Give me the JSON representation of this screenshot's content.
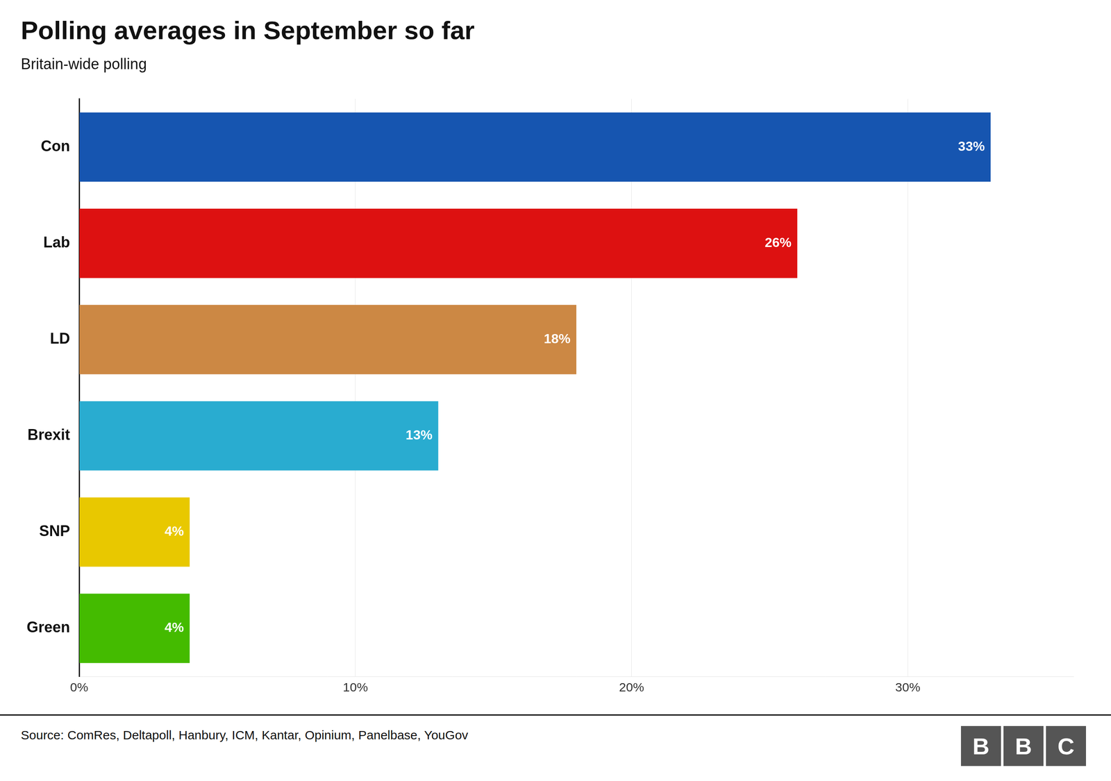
{
  "chart_data": {
    "type": "bar",
    "orientation": "horizontal",
    "title": "Polling averages in September so far",
    "subtitle": "Britain-wide polling",
    "source": "Source: ComRes, Deltapoll, Hanbury, ICM, Kantar, Opinium, Panelbase, YouGov",
    "annotations": [
      "B",
      "B",
      "C"
    ],
    "categories": [
      "Con",
      "Lab",
      "LD",
      "Brexit",
      "SNP",
      "Green"
    ],
    "values": [
      33,
      26,
      18,
      13,
      4,
      4
    ],
    "value_labels": [
      "33%",
      "26%",
      "18%",
      "13%",
      "4%",
      "4%"
    ],
    "colors": [
      "#1655b0",
      "#dd1111",
      "#cc8844",
      "#29acd0",
      "#e8c800",
      "#44bb00"
    ],
    "data_labels": true,
    "xlim": [
      0,
      36
    ],
    "xticks": [
      {
        "value": 0,
        "label": "0%"
      },
      {
        "value": 10,
        "label": "10%"
      },
      {
        "value": 20,
        "label": "20%"
      },
      {
        "value": 30,
        "label": "30%"
      }
    ],
    "grid": true
  }
}
